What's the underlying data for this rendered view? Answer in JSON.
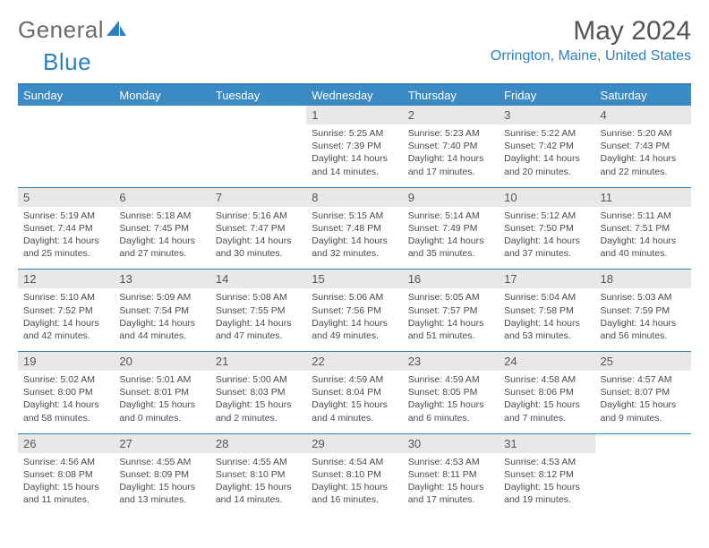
{
  "brand": {
    "word1": "General",
    "word2": "Blue"
  },
  "header": {
    "month_title": "May 2024",
    "location": "Orrington, Maine, United States"
  },
  "calendar": {
    "type": "table",
    "background_color": "#ffffff",
    "header_bg": "#3b8ac4",
    "header_text_color": "#ffffff",
    "daynum_bg": "#e8e8e8",
    "border_color": "#2d7fc1",
    "text_color": "#4a4a4a",
    "cell_fontsize": 10.5,
    "header_fontsize": 13,
    "day_headers": [
      "Sunday",
      "Monday",
      "Tuesday",
      "Wednesday",
      "Thursday",
      "Friday",
      "Saturday"
    ],
    "weeks": [
      [
        null,
        null,
        null,
        {
          "n": "1",
          "sr": "5:25 AM",
          "ss": "7:39 PM",
          "dl": "14 hours and 14 minutes."
        },
        {
          "n": "2",
          "sr": "5:23 AM",
          "ss": "7:40 PM",
          "dl": "14 hours and 17 minutes."
        },
        {
          "n": "3",
          "sr": "5:22 AM",
          "ss": "7:42 PM",
          "dl": "14 hours and 20 minutes."
        },
        {
          "n": "4",
          "sr": "5:20 AM",
          "ss": "7:43 PM",
          "dl": "14 hours and 22 minutes."
        }
      ],
      [
        {
          "n": "5",
          "sr": "5:19 AM",
          "ss": "7:44 PM",
          "dl": "14 hours and 25 minutes."
        },
        {
          "n": "6",
          "sr": "5:18 AM",
          "ss": "7:45 PM",
          "dl": "14 hours and 27 minutes."
        },
        {
          "n": "7",
          "sr": "5:16 AM",
          "ss": "7:47 PM",
          "dl": "14 hours and 30 minutes."
        },
        {
          "n": "8",
          "sr": "5:15 AM",
          "ss": "7:48 PM",
          "dl": "14 hours and 32 minutes."
        },
        {
          "n": "9",
          "sr": "5:14 AM",
          "ss": "7:49 PM",
          "dl": "14 hours and 35 minutes."
        },
        {
          "n": "10",
          "sr": "5:12 AM",
          "ss": "7:50 PM",
          "dl": "14 hours and 37 minutes."
        },
        {
          "n": "11",
          "sr": "5:11 AM",
          "ss": "7:51 PM",
          "dl": "14 hours and 40 minutes."
        }
      ],
      [
        {
          "n": "12",
          "sr": "5:10 AM",
          "ss": "7:52 PM",
          "dl": "14 hours and 42 minutes."
        },
        {
          "n": "13",
          "sr": "5:09 AM",
          "ss": "7:54 PM",
          "dl": "14 hours and 44 minutes."
        },
        {
          "n": "14",
          "sr": "5:08 AM",
          "ss": "7:55 PM",
          "dl": "14 hours and 47 minutes."
        },
        {
          "n": "15",
          "sr": "5:06 AM",
          "ss": "7:56 PM",
          "dl": "14 hours and 49 minutes."
        },
        {
          "n": "16",
          "sr": "5:05 AM",
          "ss": "7:57 PM",
          "dl": "14 hours and 51 minutes."
        },
        {
          "n": "17",
          "sr": "5:04 AM",
          "ss": "7:58 PM",
          "dl": "14 hours and 53 minutes."
        },
        {
          "n": "18",
          "sr": "5:03 AM",
          "ss": "7:59 PM",
          "dl": "14 hours and 56 minutes."
        }
      ],
      [
        {
          "n": "19",
          "sr": "5:02 AM",
          "ss": "8:00 PM",
          "dl": "14 hours and 58 minutes."
        },
        {
          "n": "20",
          "sr": "5:01 AM",
          "ss": "8:01 PM",
          "dl": "15 hours and 0 minutes."
        },
        {
          "n": "21",
          "sr": "5:00 AM",
          "ss": "8:03 PM",
          "dl": "15 hours and 2 minutes."
        },
        {
          "n": "22",
          "sr": "4:59 AM",
          "ss": "8:04 PM",
          "dl": "15 hours and 4 minutes."
        },
        {
          "n": "23",
          "sr": "4:59 AM",
          "ss": "8:05 PM",
          "dl": "15 hours and 6 minutes."
        },
        {
          "n": "24",
          "sr": "4:58 AM",
          "ss": "8:06 PM",
          "dl": "15 hours and 7 minutes."
        },
        {
          "n": "25",
          "sr": "4:57 AM",
          "ss": "8:07 PM",
          "dl": "15 hours and 9 minutes."
        }
      ],
      [
        {
          "n": "26",
          "sr": "4:56 AM",
          "ss": "8:08 PM",
          "dl": "15 hours and 11 minutes."
        },
        {
          "n": "27",
          "sr": "4:55 AM",
          "ss": "8:09 PM",
          "dl": "15 hours and 13 minutes."
        },
        {
          "n": "28",
          "sr": "4:55 AM",
          "ss": "8:10 PM",
          "dl": "15 hours and 14 minutes."
        },
        {
          "n": "29",
          "sr": "4:54 AM",
          "ss": "8:10 PM",
          "dl": "15 hours and 16 minutes."
        },
        {
          "n": "30",
          "sr": "4:53 AM",
          "ss": "8:11 PM",
          "dl": "15 hours and 17 minutes."
        },
        {
          "n": "31",
          "sr": "4:53 AM",
          "ss": "8:12 PM",
          "dl": "15 hours and 19 minutes."
        },
        null
      ]
    ],
    "labels": {
      "sunrise": "Sunrise:",
      "sunset": "Sunset:",
      "daylight": "Daylight:"
    }
  }
}
